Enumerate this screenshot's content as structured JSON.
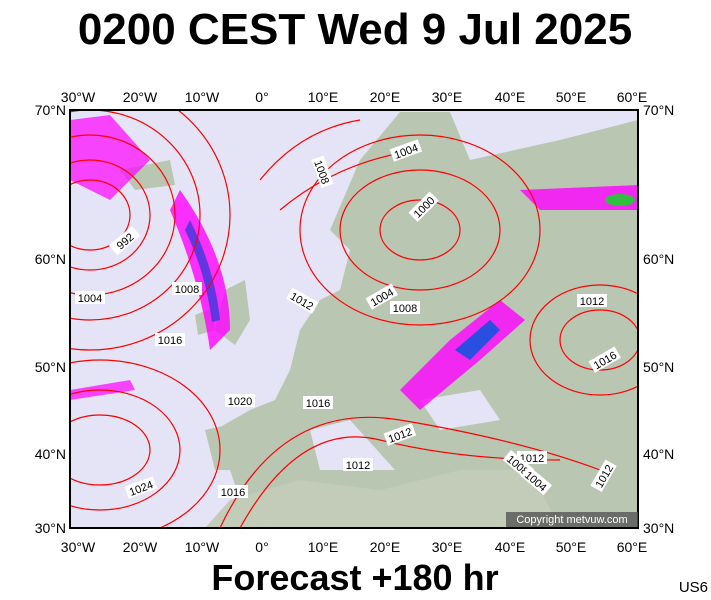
{
  "header": {
    "title": "0200 CEST Wed 9 Jul 2025"
  },
  "footer": {
    "forecast": "Forecast +180 hr",
    "station": "US6"
  },
  "copyright": "Copyright metvuw.com",
  "lon_labels": [
    "30°W",
    "20°W",
    "10°W",
    "0°",
    "10°E",
    "20°E",
    "30°E",
    "40°E",
    "50°E",
    "60°E"
  ],
  "lat_labels": [
    "70°N",
    "60°N",
    "50°N",
    "40°N",
    "30°N"
  ],
  "isobar_labels": [
    "1004",
    "1008",
    "1000",
    "992",
    "1008",
    "1004",
    "1012",
    "1004",
    "1008",
    "1016",
    "1012",
    "1016",
    "1020",
    "1016",
    "1012",
    "1012",
    "1012",
    "1008",
    "1004",
    "1012",
    "1024",
    "1016"
  ]
}
